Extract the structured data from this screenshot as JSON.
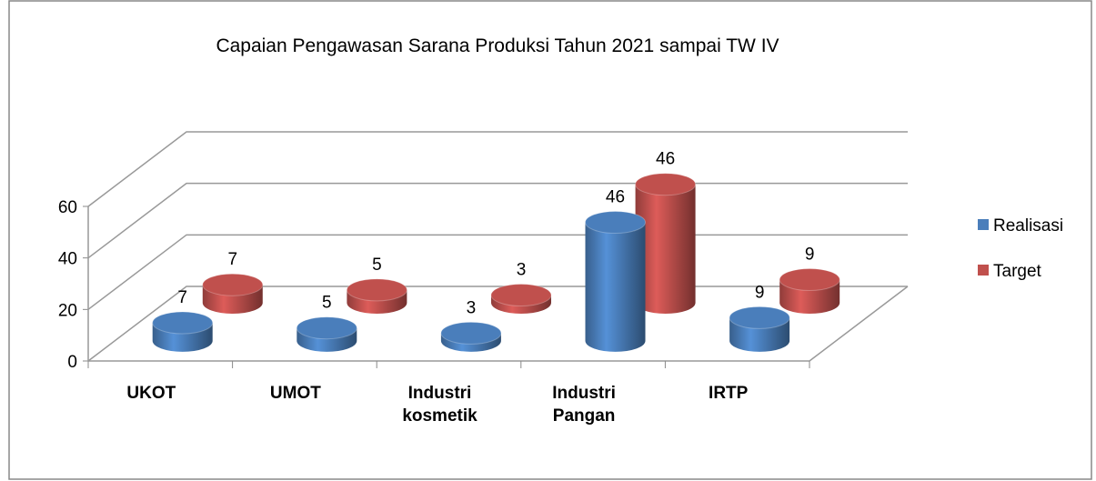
{
  "chart_data": {
    "type": "bar3d",
    "title": "Capaian Pengawasan Sarana Produksi Tahun 2021 sampai TW IV",
    "categories": [
      "UKOT",
      "UMOT",
      "Industri kosmetik",
      "Industri Pangan",
      "IRTP"
    ],
    "series": [
      {
        "name": "Realisasi",
        "color": "#4a7ebb",
        "values": [
          7,
          5,
          3,
          46,
          9
        ]
      },
      {
        "name": "Target",
        "color": "#c0504d",
        "values": [
          7,
          5,
          3,
          46,
          9
        ]
      }
    ],
    "ylim": [
      0,
      60
    ],
    "yticks": [
      0,
      20,
      40,
      60
    ],
    "grid": true,
    "legend": "right"
  }
}
